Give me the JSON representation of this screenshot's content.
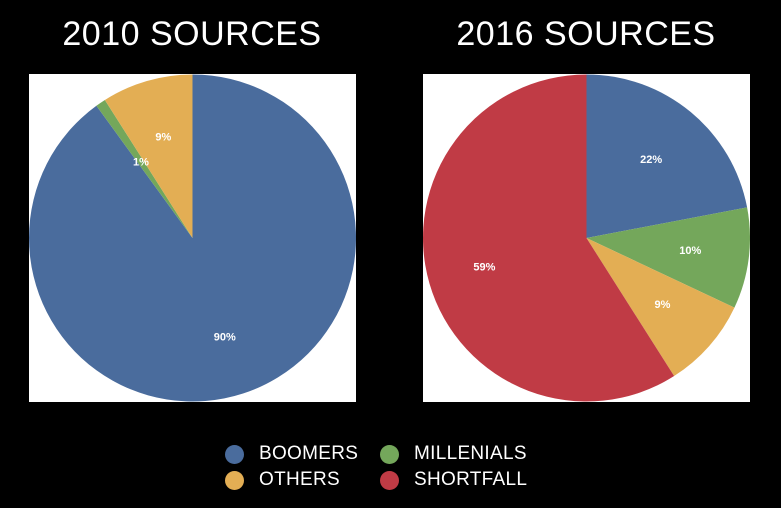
{
  "colors": {
    "boomers": "#4a6c9d",
    "millenials": "#74a75b",
    "others": "#e3ae54",
    "shortfall": "#c03b45",
    "label_text": "#ffffff",
    "panel": "#ffffff",
    "background": "#000000"
  },
  "chart_data": [
    {
      "type": "pie",
      "title": "2010 SOURCES",
      "start_angle_deg": 0,
      "direction": "clockwise",
      "slices": [
        {
          "category": "boomers",
          "value": 90,
          "label": "90%"
        },
        {
          "category": "millenials",
          "value": 1,
          "label": "1%"
        },
        {
          "category": "others",
          "value": 9,
          "label": "9%"
        }
      ]
    },
    {
      "type": "pie",
      "title": "2016 SOURCES",
      "start_angle_deg": 0,
      "direction": "clockwise",
      "slices": [
        {
          "category": "boomers",
          "value": 22,
          "label": "22%"
        },
        {
          "category": "millenials",
          "value": 10,
          "label": "10%"
        },
        {
          "category": "others",
          "value": 9,
          "label": "9%"
        },
        {
          "category": "shortfall",
          "value": 59,
          "label": "59%"
        }
      ]
    }
  ],
  "legend": {
    "items": [
      {
        "key": "boomers",
        "label": "BOOMERS"
      },
      {
        "key": "millenials",
        "label": "MILLENIALS"
      },
      {
        "key": "others",
        "label": "OTHERS"
      },
      {
        "key": "shortfall",
        "label": "SHORTFALL"
      }
    ]
  }
}
